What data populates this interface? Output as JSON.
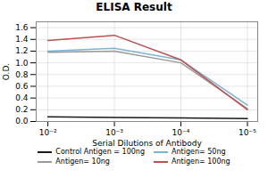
{
  "chart_data": {
    "type": "line",
    "title": "ELISA Result",
    "xlabel": "Serial Dilutions of Antibody",
    "ylabel": "O.D.",
    "x": [
      0.01,
      0.001,
      0.0001,
      1e-05
    ],
    "series": [
      {
        "name": "Control Antigen = 100ng",
        "color": "#1a1a1a",
        "values": [
          0.08,
          0.07,
          0.06,
          0.05
        ]
      },
      {
        "name": "Antigen= 10ng",
        "color": "#999999",
        "values": [
          1.18,
          1.2,
          1.0,
          0.22
        ]
      },
      {
        "name": "Antigen= 50ng",
        "color": "#7ab4d4",
        "values": [
          1.2,
          1.25,
          1.05,
          0.28
        ]
      },
      {
        "name": "Antigen= 100ng",
        "color": "#c05050",
        "values": [
          1.38,
          1.47,
          1.05,
          0.2
        ]
      }
    ],
    "log": "x",
    "xlim": [
      0.015,
      7e-06
    ],
    "xticks": [
      {
        "value": 0.01,
        "label": "10⁻²"
      },
      {
        "value": 0.001,
        "label": "10⁻³"
      },
      {
        "value": 0.0001,
        "label": "10⁻⁴"
      },
      {
        "value": 1e-05,
        "label": "10⁻⁵"
      }
    ],
    "ylim": [
      0,
      1.7
    ],
    "yticks": [
      {
        "value": 0,
        "label": "0.0"
      },
      0.2,
      0.4,
      0.6,
      0.8,
      {
        "value": 1.0,
        "label": "1.0"
      },
      1.2,
      1.4,
      1.6
    ],
    "grid": true,
    "legend": "bottom"
  }
}
